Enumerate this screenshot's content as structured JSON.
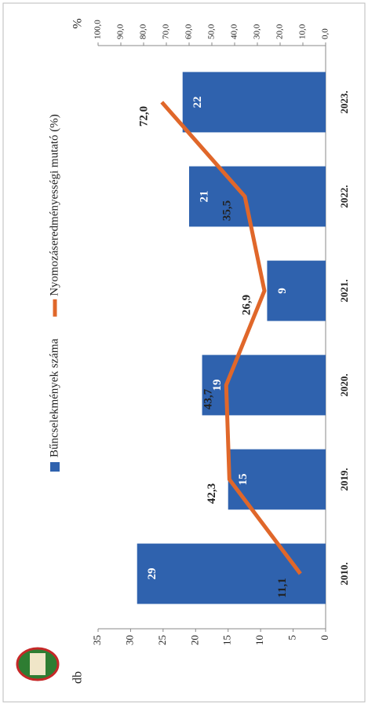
{
  "chart_data": {
    "type": "bar-line",
    "categories": [
      "2010.",
      "2019.",
      "2020.",
      "2021.",
      "2022.",
      "2023."
    ],
    "y_label": "db",
    "y2_label": "%",
    "series": [
      {
        "name": "Bűncselekmények száma",
        "type": "bar",
        "color": "#2f62ae",
        "values": [
          29,
          15,
          19,
          9,
          21,
          22
        ]
      },
      {
        "name": "Nyomozáseredményességi mutató (%)",
        "type": "line",
        "axis": "y2",
        "color": "#e0672a",
        "values": [
          11.1,
          42.3,
          43.7,
          26.9,
          35.5,
          72.0
        ],
        "value_labels": [
          "11,1",
          "42,3",
          "43,7",
          "26,9",
          "35,5",
          "72,0"
        ]
      }
    ],
    "ylim": [
      0,
      35
    ],
    "yticks": [
      0,
      5,
      10,
      15,
      20,
      25,
      30,
      35
    ],
    "y2lim": [
      0,
      100
    ],
    "y2ticks": [
      {
        "value": 0,
        "label": "0,0"
      },
      {
        "value": 10,
        "label": "10,0"
      },
      {
        "value": 20,
        "label": "20,0"
      },
      {
        "value": 30,
        "label": "30,0"
      },
      {
        "value": 40,
        "label": "40,0"
      },
      {
        "value": 50,
        "label": "50,0"
      },
      {
        "value": 60,
        "label": "60,0"
      },
      {
        "value": 70,
        "label": "70,0"
      },
      {
        "value": 80,
        "label": "80,0"
      },
      {
        "value": 90,
        "label": "90,0"
      },
      {
        "value": 100,
        "label": "100,0"
      }
    ],
    "grid": false
  }
}
